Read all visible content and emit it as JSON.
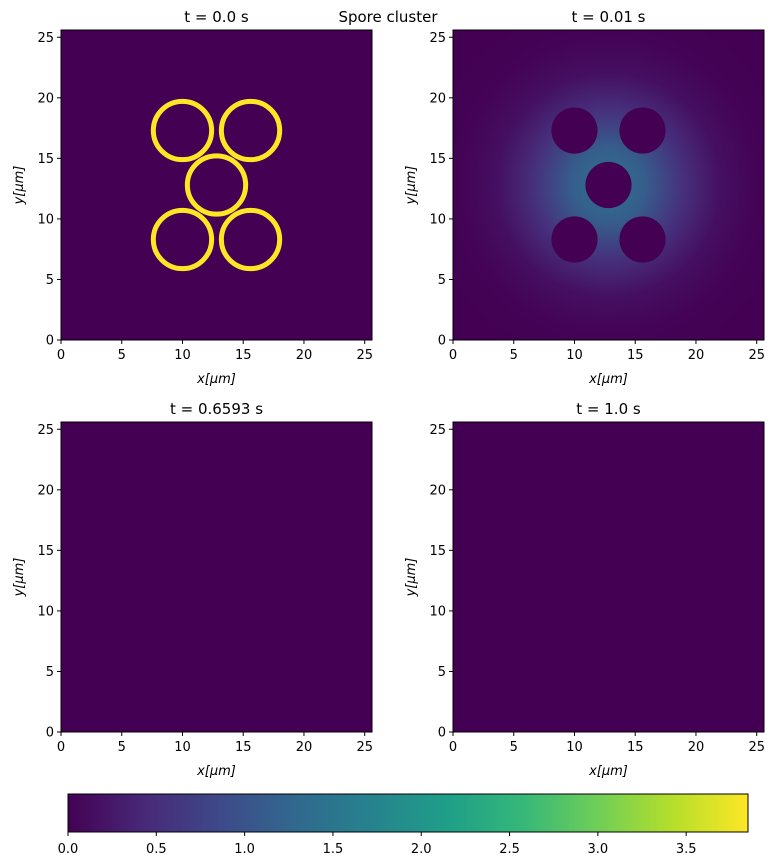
{
  "suptitle": "Spore cluster",
  "chart_data": {
    "type": "heatmap",
    "title": "Spore cluster",
    "colormap": "viridis",
    "colormap_stops": [
      "#440154",
      "#482878",
      "#3e4989",
      "#31688e",
      "#26828e",
      "#1f9e89",
      "#35b779",
      "#6ece58",
      "#b5de2b",
      "#fde725"
    ],
    "grid": false,
    "panels": [
      {
        "title": "t = 0.0 s",
        "xlabel": "x[μm]",
        "ylabel": "y[μm]",
        "xlim": [
          0,
          25.6
        ],
        "ylim": [
          0,
          25.6
        ],
        "xticks": [
          "0",
          "5",
          "10",
          "15",
          "20",
          "25"
        ],
        "yticks": [
          "0",
          "5",
          "10",
          "15",
          "20",
          "25"
        ],
        "background_value": 0.0,
        "features": [
          {
            "kind": "ring",
            "cx": 10.0,
            "cy": 17.3,
            "r": 2.4,
            "value": 3.85
          },
          {
            "kind": "ring",
            "cx": 15.6,
            "cy": 17.3,
            "r": 2.4,
            "value": 3.85
          },
          {
            "kind": "ring",
            "cx": 12.8,
            "cy": 12.8,
            "r": 2.4,
            "value": 3.85
          },
          {
            "kind": "ring",
            "cx": 10.0,
            "cy": 8.3,
            "r": 2.4,
            "value": 3.85
          },
          {
            "kind": "ring",
            "cx": 15.6,
            "cy": 8.3,
            "r": 2.4,
            "value": 3.85
          }
        ]
      },
      {
        "title": "t = 0.01 s",
        "xlabel": "x[μm]",
        "ylabel": "y[μm]",
        "xlim": [
          0,
          25.6
        ],
        "ylim": [
          0,
          25.6
        ],
        "xticks": [
          "0",
          "5",
          "10",
          "15",
          "20",
          "25"
        ],
        "yticks": [
          "0",
          "5",
          "10",
          "15",
          "20",
          "25"
        ],
        "background_value": 0.0,
        "diffuse_glow": {
          "cx": 12.8,
          "cy": 12.8,
          "peak_value": 1.45,
          "sigma": 5.5
        },
        "features": [
          {
            "kind": "disk",
            "cx": 10.0,
            "cy": 17.3,
            "r": 1.9,
            "value": 0.0
          },
          {
            "kind": "disk",
            "cx": 15.6,
            "cy": 17.3,
            "r": 1.9,
            "value": 0.0
          },
          {
            "kind": "disk",
            "cx": 12.8,
            "cy": 12.8,
            "r": 1.9,
            "value": 0.0
          },
          {
            "kind": "disk",
            "cx": 10.0,
            "cy": 8.3,
            "r": 1.9,
            "value": 0.0
          },
          {
            "kind": "disk",
            "cx": 15.6,
            "cy": 8.3,
            "r": 1.9,
            "value": 0.0
          }
        ]
      },
      {
        "title": "t = 0.6593 s",
        "xlabel": "x[μm]",
        "ylabel": "y[μm]",
        "xlim": [
          0,
          25.6
        ],
        "ylim": [
          0,
          25.6
        ],
        "xticks": [
          "0",
          "5",
          "10",
          "15",
          "20",
          "25"
        ],
        "yticks": [
          "0",
          "5",
          "10",
          "15",
          "20",
          "25"
        ],
        "background_value": 0.0,
        "features": []
      },
      {
        "title": "t = 1.0 s",
        "xlabel": "x[μm]",
        "ylabel": "y[μm]",
        "xlim": [
          0,
          25.6
        ],
        "ylim": [
          0,
          25.6
        ],
        "xticks": [
          "0",
          "5",
          "10",
          "15",
          "20",
          "25"
        ],
        "yticks": [
          "0",
          "5",
          "10",
          "15",
          "20",
          "25"
        ],
        "background_value": 0.0,
        "features": []
      }
    ],
    "colorbar": {
      "orientation": "horizontal",
      "range": [
        0,
        3.85
      ],
      "ticks": [
        "0.0",
        "0.5",
        "1.0",
        "1.5",
        "2.0",
        "2.5",
        "3.0",
        "3.5"
      ]
    }
  }
}
